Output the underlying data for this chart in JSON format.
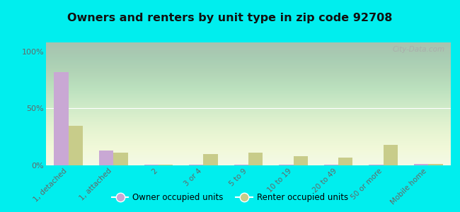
{
  "title": "Owners and renters by unit type in zip code 92708",
  "categories": [
    "1, detached",
    "1, attached",
    "2",
    "3 or 4",
    "5 to 9",
    "10 to 19",
    "20 to 49",
    "50 or more",
    "Mobile home"
  ],
  "owner_values": [
    82,
    13,
    0.5,
    0.5,
    0.5,
    0.5,
    0.5,
    0.5,
    1.5
  ],
  "renter_values": [
    35,
    11,
    0.5,
    10,
    11,
    8,
    7,
    18,
    1
  ],
  "owner_color": "#c9a8d4",
  "renter_color": "#c8cc8a",
  "outer_bg": "#00eeee",
  "ylabel_ticks": [
    0,
    50,
    100
  ],
  "ylabel_labels": [
    "0%",
    "50%",
    "100%"
  ],
  "watermark": "City-Data.com",
  "legend_owner": "Owner occupied units",
  "legend_renter": "Renter occupied units",
  "ylim": [
    0,
    108
  ]
}
